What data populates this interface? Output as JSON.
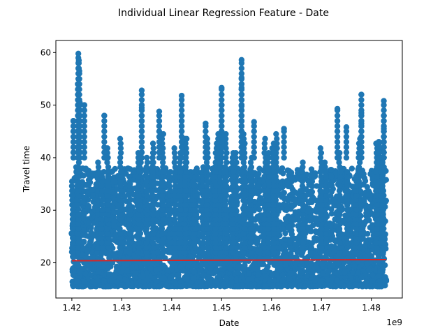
{
  "chart_data": {
    "type": "scatter",
    "title": "Individual Linear Regression Feature - Date",
    "xlabel": "Date",
    "ylabel": "Travel time",
    "x_offset_label": "1e9",
    "xlim": [
      1.4168,
      1.4862
    ],
    "ylim": [
      13.3,
      62.3
    ],
    "x_ticks": [
      1.42,
      1.43,
      1.44,
      1.45,
      1.46,
      1.47,
      1.48
    ],
    "x_tick_labels": [
      "1.42",
      "1.43",
      "1.44",
      "1.45",
      "1.46",
      "1.47",
      "1.48"
    ],
    "y_ticks": [
      20,
      30,
      40,
      50,
      60
    ],
    "y_tick_labels": [
      "20",
      "30",
      "40",
      "50",
      "60"
    ],
    "grid": false,
    "scatter_color": "#1f77b4",
    "regression_color": "#d62728",
    "regression_line": {
      "x": [
        1.42,
        1.483
      ],
      "y": [
        20.4,
        20.6
      ]
    },
    "data_x_range": [
      1.42,
      1.483
    ],
    "data_y_min": 15.5,
    "data_y_typical_max": 38,
    "spikes": [
      {
        "x": 1.4213,
        "y": 59.8
      },
      {
        "x": 1.4214,
        "y": 58.5
      },
      {
        "x": 1.4215,
        "y": 56.5
      },
      {
        "x": 1.4212,
        "y": 54.0
      },
      {
        "x": 1.4216,
        "y": 50.5
      },
      {
        "x": 1.4225,
        "y": 50.0
      },
      {
        "x": 1.4203,
        "y": 47.0
      },
      {
        "x": 1.4265,
        "y": 48.0
      },
      {
        "x": 1.434,
        "y": 52.8
      },
      {
        "x": 1.434,
        "y": 49.5
      },
      {
        "x": 1.4375,
        "y": 48.8
      },
      {
        "x": 1.442,
        "y": 51.8
      },
      {
        "x": 1.442,
        "y": 48.0
      },
      {
        "x": 1.4468,
        "y": 46.5
      },
      {
        "x": 1.45,
        "y": 53.3
      },
      {
        "x": 1.45,
        "y": 50.0
      },
      {
        "x": 1.454,
        "y": 58.6
      },
      {
        "x": 1.454,
        "y": 55.2
      },
      {
        "x": 1.454,
        "y": 53.3
      },
      {
        "x": 1.454,
        "y": 49.8
      },
      {
        "x": 1.4565,
        "y": 46.8
      },
      {
        "x": 1.4625,
        "y": 45.5
      },
      {
        "x": 1.4732,
        "y": 49.3
      },
      {
        "x": 1.475,
        "y": 45.8
      },
      {
        "x": 1.478,
        "y": 52.0
      },
      {
        "x": 1.478,
        "y": 48.5
      },
      {
        "x": 1.478,
        "y": 46.5
      },
      {
        "x": 1.4825,
        "y": 50.8
      },
      {
        "x": 1.4825,
        "y": 48.0
      },
      {
        "x": 1.4825,
        "y": 45.5
      },
      {
        "x": 1.4825,
        "y": 44.0
      },
      {
        "x": 1.4815,
        "y": 43.0
      }
    ]
  }
}
